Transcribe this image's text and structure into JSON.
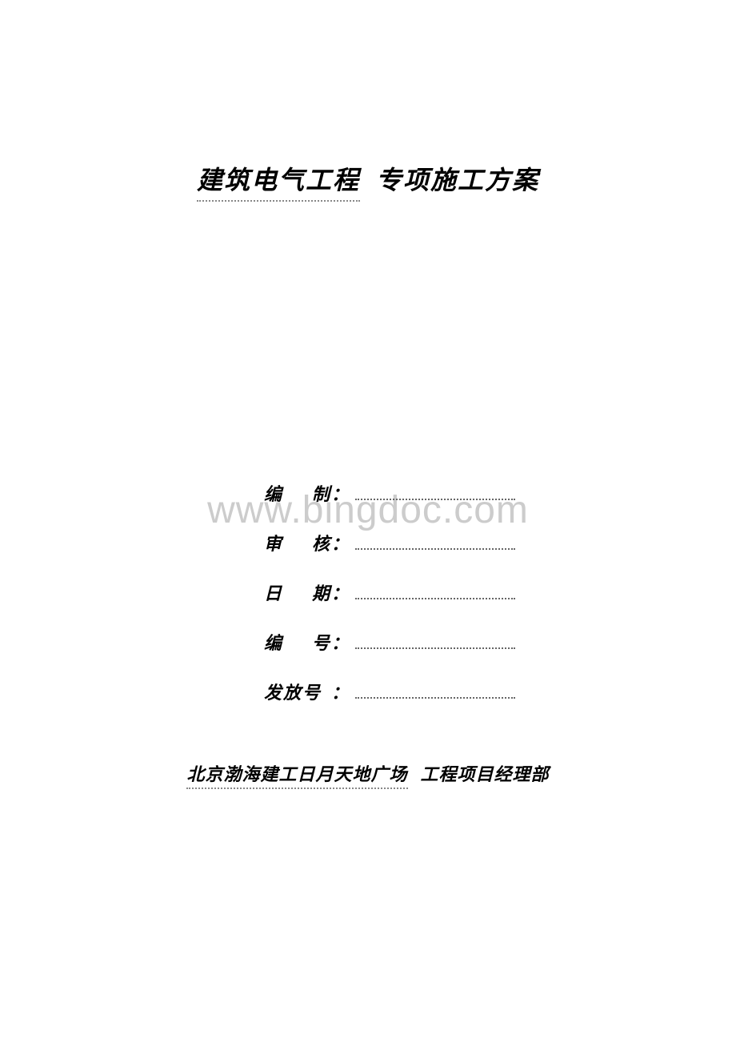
{
  "title": {
    "part1": "建筑电气工程",
    "part2": "专项施工方案"
  },
  "watermark": "www.bingdoc.com",
  "signatures": {
    "row1": {
      "label": "编　制"
    },
    "row2": {
      "label": "审　核"
    },
    "row3": {
      "label": "日　期"
    },
    "row4": {
      "label": "编　号"
    },
    "row5": {
      "label": "发放号"
    }
  },
  "footer": {
    "part1": "北京渤海建工日月天地广场",
    "part2": "工程项目经理部"
  },
  "colors": {
    "text": "#000000",
    "watermark": "#cccccc",
    "dotted_line": "#888888",
    "background": "#ffffff"
  },
  "fonts": {
    "title_size": 32,
    "signature_size": 22,
    "footer_size": 22,
    "watermark_size": 48
  }
}
